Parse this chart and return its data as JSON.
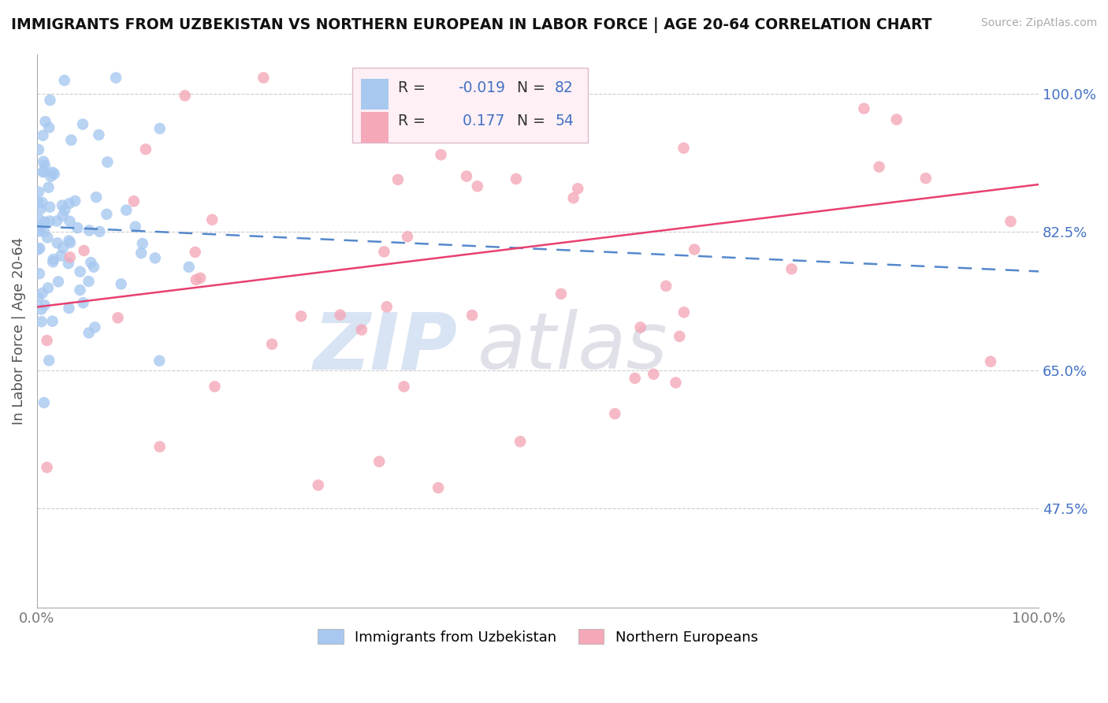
{
  "title": "IMMIGRANTS FROM UZBEKISTAN VS NORTHERN EUROPEAN IN LABOR FORCE | AGE 20-64 CORRELATION CHART",
  "source": "Source: ZipAtlas.com",
  "ylabel": "In Labor Force | Age 20-64",
  "xlim": [
    0.0,
    1.0
  ],
  "ylim": [
    0.35,
    1.05
  ],
  "yticks": [
    0.475,
    0.65,
    0.825,
    1.0
  ],
  "ytick_labels": [
    "47.5%",
    "65.0%",
    "82.5%",
    "100.0%"
  ],
  "xtick_labels": [
    "0.0%",
    "100.0%"
  ],
  "legend_r_blue": "-0.019",
  "legend_n_blue": "82",
  "legend_r_pink": "0.177",
  "legend_n_pink": "54",
  "blue_color": "#a8c8f0",
  "pink_color": "#f4a8b8",
  "trend_blue_color": "#5588cc",
  "trend_pink_color": "#e84070",
  "tick_color": "#4472c4",
  "blue_seed": 42,
  "pink_seed": 77,
  "blue_n": 82,
  "pink_n": 54,
  "blue_trend_x0": 0.0,
  "blue_trend_y0": 0.832,
  "blue_trend_x1": 1.0,
  "blue_trend_y1": 0.775,
  "pink_trend_x0": 0.0,
  "pink_trend_y0": 0.73,
  "pink_trend_x1": 1.0,
  "pink_trend_y1": 0.885
}
